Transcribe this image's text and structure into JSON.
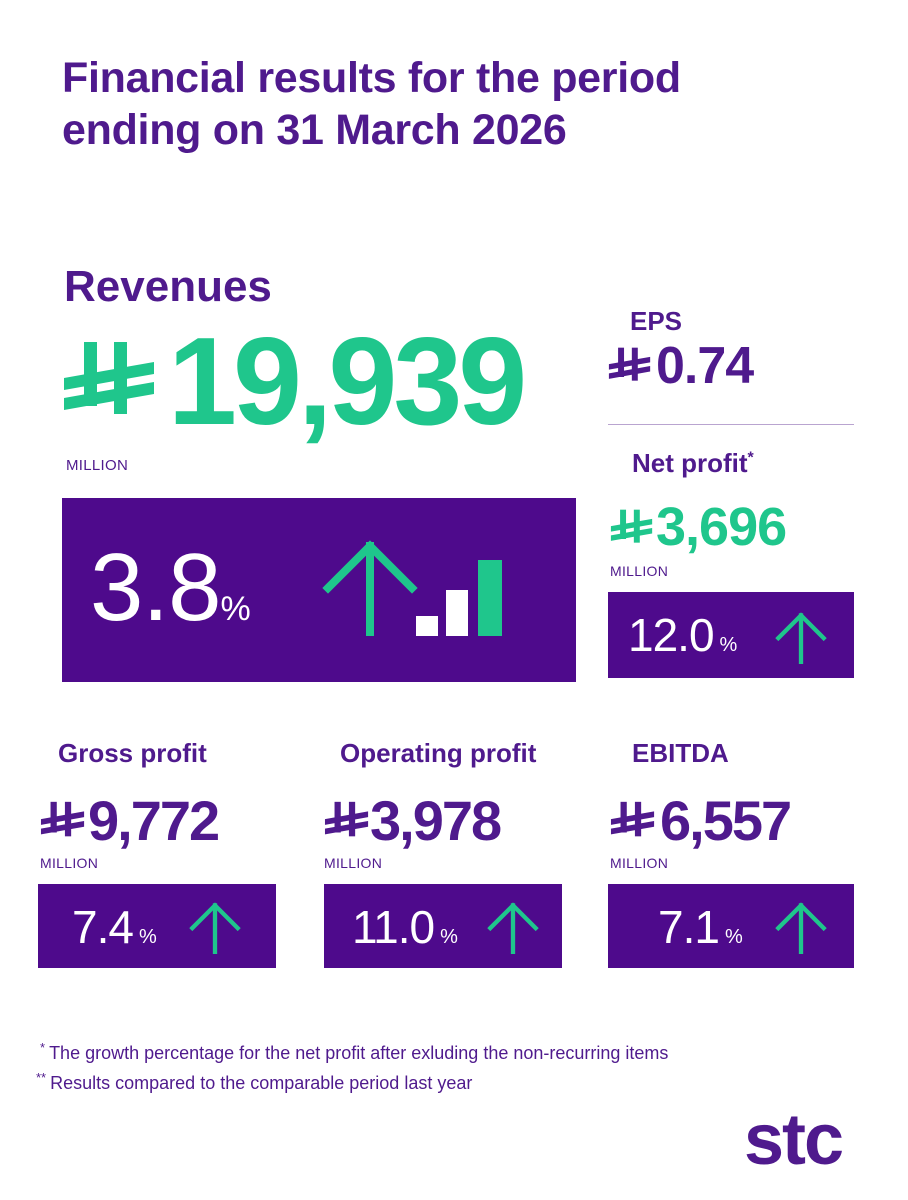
{
  "title_line1": "Financial results for the period",
  "title_line2": "ending on 31 March 2026",
  "currency_icon": "saudi-riyal-symbol",
  "colors": {
    "purple": "#4f1a8d",
    "box": "#4e0a8c",
    "green": "#1fc68c"
  },
  "revenues": {
    "label": "Revenues",
    "value": "19,939",
    "unit": "MILLION",
    "growth": "3.8",
    "growth_unit": "%",
    "trend": "up"
  },
  "eps": {
    "label": "EPS",
    "value": "0.74"
  },
  "net_profit": {
    "label": "Net profit",
    "label_mark": "*",
    "value": "3,696",
    "unit": "MILLION",
    "growth": "12.0",
    "growth_unit": "%",
    "trend": "up"
  },
  "gross_profit": {
    "label": "Gross profit",
    "value": "9,772",
    "unit": "MILLION",
    "growth": "7.4",
    "growth_unit": "%",
    "trend": "up"
  },
  "operating_profit": {
    "label": "Operating profit",
    "value": "3,978",
    "unit": "MILLION",
    "growth": "11.0",
    "growth_unit": "%",
    "trend": "up"
  },
  "ebitda": {
    "label": "EBITDA",
    "value": "6,557",
    "unit": "MILLION",
    "growth": "7.1",
    "growth_unit": "%",
    "trend": "up"
  },
  "footnotes": [
    {
      "mark": "*",
      "text": "The growth percentage for the net profit after exluding the non-recurring items"
    },
    {
      "mark": "**",
      "text": "Results compared to the comparable period last year"
    }
  ],
  "logo_text": "stc"
}
